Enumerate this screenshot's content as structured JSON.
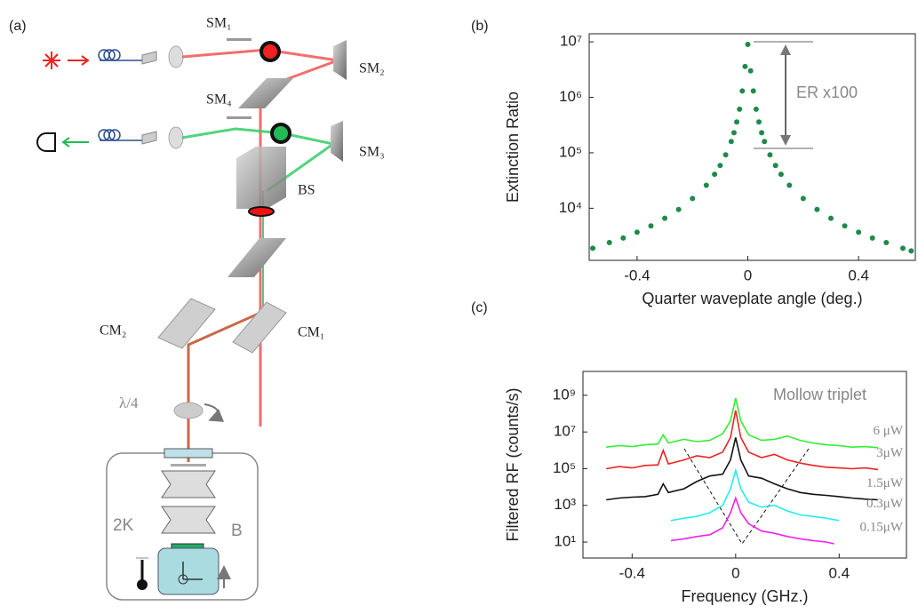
{
  "panel_labels": [
    "(a)",
    "(b)",
    "(c)"
  ],
  "diagram": {
    "labels": {
      "sm1": "SM₁",
      "sm2": "SM₂",
      "sm4": "SM₄",
      "sm3": "SM₃",
      "bs": "BS",
      "cm2": "CM₂",
      "cm1": "CM₁",
      "qwp": "λ/4",
      "temp": "2K",
      "field": "B"
    }
  },
  "chart_data": [
    {
      "type": "scatter",
      "xlabel": "Quarter waveplate angle (deg.)",
      "ylabel": "Extinction Ratio",
      "annotation": "ER x100",
      "log_y": true,
      "color": "#1e8a4a",
      "x": [
        -0.56,
        -0.5,
        -0.45,
        -0.4,
        -0.35,
        -0.3,
        -0.25,
        -0.2,
        -0.15,
        -0.12,
        -0.1,
        -0.08,
        -0.06,
        -0.05,
        -0.04,
        -0.03,
        -0.02,
        -0.01,
        0,
        0.01,
        0.02,
        0.03,
        0.04,
        0.05,
        0.06,
        0.08,
        0.1,
        0.12,
        0.15,
        0.2,
        0.25,
        0.3,
        0.35,
        0.4,
        0.45,
        0.5,
        0.56,
        0.59
      ],
      "values": [
        1900,
        2400,
        2900,
        3700,
        4800,
        6600,
        9500,
        15000,
        26000,
        41000,
        59000,
        92000,
        160000,
        230000,
        360000,
        610000,
        1300000,
        3600000,
        9000000,
        3000000,
        1300000,
        610000,
        360000,
        230000,
        160000,
        92000,
        59000,
        41000,
        26000,
        15000,
        9500,
        6600,
        4800,
        3700,
        2900,
        2400,
        1900,
        1700
      ],
      "xlim": [
        -0.573,
        0.605
      ],
      "ylim": [
        1150,
        14000000
      ],
      "xticks": [
        -0.4,
        0,
        0.4
      ],
      "yticks": [
        {
          "value": 10000,
          "label": "10⁴"
        },
        {
          "value": 100000,
          "label": "10⁵"
        },
        {
          "value": 1000000,
          "label": "10⁶"
        },
        {
          "value": 10000000,
          "label": "10⁷"
        }
      ]
    },
    {
      "type": "line",
      "xlabel": "Frequency (GHz.)",
      "ylabel": "Filtered RF (counts/s)",
      "annotation": "Mollow triplet",
      "log_y": true,
      "xlim": [
        -0.59,
        0.66
      ],
      "ylim": [
        1.35,
        20000000000
      ],
      "xticks": [
        -0.4,
        0,
        0.4
      ],
      "yticks": [
        {
          "value": 10,
          "label": "10¹"
        },
        {
          "value": 1000,
          "label": "10³"
        },
        {
          "value": 100000,
          "label": "10⁵"
        },
        {
          "value": 10000000,
          "label": "10⁷"
        },
        {
          "value": 1000000000,
          "label": "10⁹"
        }
      ],
      "series": [
        {
          "name": "6 μW",
          "color": "#33ee33",
          "x": [
            -0.5,
            -0.45,
            -0.4,
            -0.35,
            -0.3,
            -0.28,
            -0.26,
            -0.2,
            -0.15,
            -0.1,
            -0.05,
            -0.02,
            0,
            0.02,
            0.05,
            0.1,
            0.15,
            0.2,
            0.25,
            0.3,
            0.35,
            0.4,
            0.45,
            0.5,
            0.55
          ],
          "values": [
            1500000,
            1800000,
            1600000,
            2000000,
            2200000,
            7000000,
            2500000,
            4000000,
            3000000,
            3500000,
            8000000,
            40000000,
            700000000,
            40000000,
            7000000,
            3500000,
            4000000,
            6000000,
            3500000,
            2500000,
            2000000,
            1800000,
            1500000,
            1600000,
            1400000
          ]
        },
        {
          "name": "3μW",
          "color": "#ee2222",
          "x": [
            -0.5,
            -0.45,
            -0.4,
            -0.35,
            -0.3,
            -0.28,
            -0.26,
            -0.2,
            -0.15,
            -0.1,
            -0.05,
            -0.02,
            0,
            0.02,
            0.05,
            0.1,
            0.15,
            0.2,
            0.25,
            0.3,
            0.35,
            0.4,
            0.45,
            0.5,
            0.55
          ],
          "values": [
            100000,
            130000,
            110000,
            150000,
            160000,
            1000000,
            180000,
            300000,
            500000,
            400000,
            800000,
            5000000,
            150000000,
            5000000,
            800000,
            400000,
            600000,
            300000,
            200000,
            150000,
            120000,
            110000,
            100000,
            110000,
            90000
          ]
        },
        {
          "name": "1.5μW",
          "color": "#111111",
          "x": [
            -0.5,
            -0.45,
            -0.4,
            -0.35,
            -0.3,
            -0.28,
            -0.26,
            -0.2,
            -0.15,
            -0.1,
            -0.05,
            -0.02,
            0,
            0.02,
            0.05,
            0.1,
            0.15,
            0.2,
            0.25,
            0.3,
            0.35,
            0.4,
            0.45,
            0.5,
            0.55
          ],
          "values": [
            2000,
            2500,
            2800,
            3000,
            4000,
            15000,
            5000,
            8000,
            20000,
            40000,
            50000,
            300000,
            5000000,
            300000,
            40000,
            30000,
            15000,
            8000,
            5000,
            4000,
            3500,
            3000,
            2500,
            2200,
            2000
          ]
        },
        {
          "name": "0.3μW",
          "color": "#22eeee",
          "x": [
            -0.25,
            -0.2,
            -0.15,
            -0.1,
            -0.05,
            -0.02,
            0,
            0.02,
            0.05,
            0.1,
            0.15,
            0.2,
            0.25,
            0.3,
            0.35,
            0.4
          ],
          "values": [
            150,
            200,
            250,
            400,
            1000,
            8000,
            80000,
            8000,
            1500,
            800,
            1000,
            500,
            300,
            250,
            200,
            150
          ]
        },
        {
          "name": "0.15μW",
          "color": "#ee22ee",
          "x": [
            -0.25,
            -0.2,
            -0.15,
            -0.1,
            -0.05,
            -0.02,
            0,
            0.02,
            0.05,
            0.1,
            0.15,
            0.2,
            0.25,
            0.3,
            0.35,
            0.38
          ],
          "values": [
            12,
            15,
            20,
            25,
            60,
            400,
            2500,
            400,
            100,
            40,
            30,
            20,
            15,
            12,
            10,
            8
          ]
        }
      ]
    }
  ]
}
